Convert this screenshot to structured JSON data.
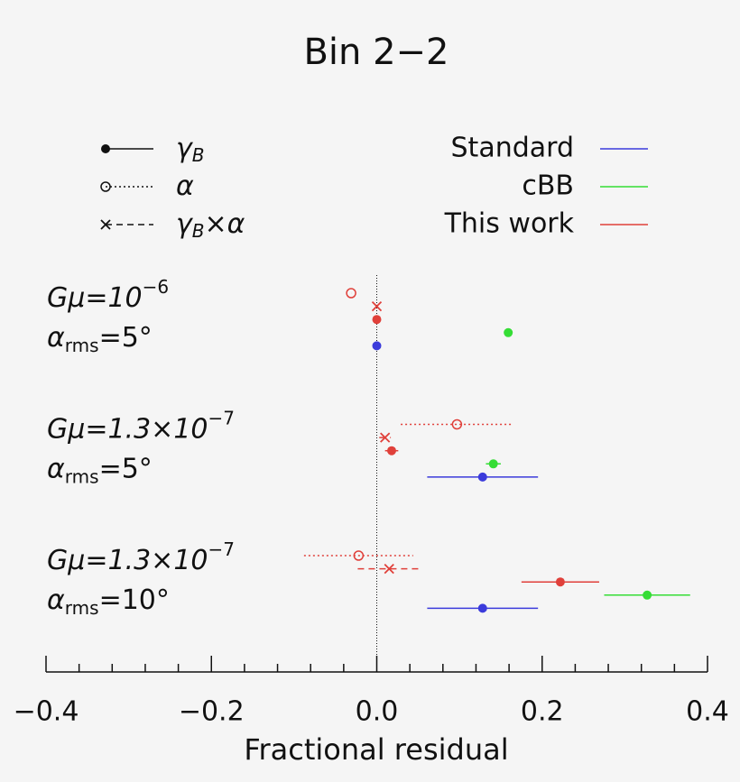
{
  "chart_data": {
    "type": "errorbar",
    "title": "Bin 2−2",
    "xlabel": "Fractional residual",
    "xlim": [
      -0.4,
      0.4
    ],
    "xticks": [
      {
        "value": -0.4,
        "label": "−0.4"
      },
      {
        "value": -0.2,
        "label": "−0.2"
      },
      {
        "value": 0,
        "label": "0.0"
      },
      0.2,
      0.4
    ],
    "xminorticks": [
      -0.36,
      -0.32,
      -0.28,
      -0.24,
      -0.16,
      -0.12,
      -0.08,
      -0.04,
      0.04,
      0.08,
      0.12,
      0.16,
      0.24,
      0.28,
      0.32,
      0.36
    ],
    "vline": 0,
    "methods": [
      {
        "name": "Standard",
        "color": "#3b3bdb"
      },
      {
        "name": "cBB",
        "color": "#35dd35"
      },
      {
        "name": "This work",
        "color": "#e0403a"
      }
    ],
    "estimators": [
      {
        "label": "γ",
        "subscript": "B",
        "suffix": "",
        "marker": "filled",
        "dash": "solid"
      },
      {
        "label": "α",
        "subscript": "",
        "suffix": "",
        "marker": "open",
        "dash": "dotted"
      },
      {
        "label": "γ",
        "subscript": "B",
        "suffix": "×α",
        "marker": "cross",
        "dash": "dashed"
      }
    ],
    "groups": [
      {
        "line1": "Gμ=10",
        "sup": "−6",
        "line2": "α",
        "sub": "rms",
        "rest": "=5°"
      },
      {
        "line1": "Gμ=1.3×10",
        "sup": "−7",
        "line2": "α",
        "sub": "rms",
        "rest": "=5°"
      },
      {
        "line1": "Gμ=1.3×10",
        "sup": "−7",
        "line2": "α",
        "sub": "rms",
        "rest": "=10°"
      }
    ],
    "series": [
      {
        "color": "#e0403a",
        "marker": "open",
        "dash": "dotted",
        "values": [
          -0.031,
          0.097,
          -0.022
        ],
        "errors": [
          0,
          0.068,
          0.066
        ]
      },
      {
        "color": "#e0403a",
        "marker": "cross",
        "dash": "dashed",
        "values": [
          0.0,
          0.01,
          0.015
        ],
        "errors": [
          0,
          0.007,
          0.038
        ]
      },
      {
        "color": "#e0403a",
        "marker": "filled",
        "dash": "solid",
        "values": [
          0.0,
          0.018,
          0.222
        ],
        "errors": [
          0,
          0.008,
          0.047
        ]
      },
      {
        "color": "#35dd35",
        "marker": "filled",
        "dash": "solid",
        "values": [
          0.159,
          0.141,
          0.327
        ],
        "errors": [
          0,
          0.009,
          0.052
        ]
      },
      {
        "color": "#3b3bdb",
        "marker": "filled",
        "dash": "solid",
        "values": [
          0.0,
          0.128,
          0.128
        ],
        "errors": [
          0,
          0.067,
          0.067
        ]
      }
    ]
  }
}
